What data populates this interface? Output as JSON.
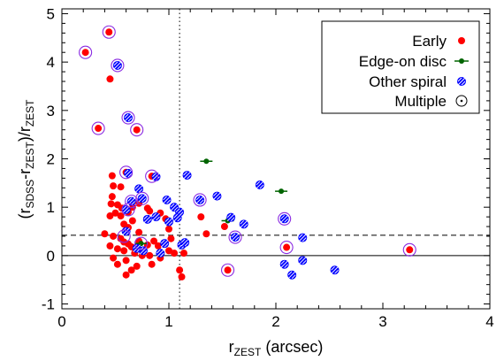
{
  "chart_data": {
    "type": "scatter",
    "xlabel": {
      "main": "r",
      "sub": "ZEST",
      "rest": " (arcsec)"
    },
    "ylabel": {
      "parts": [
        {
          "t": "(r",
          "sub": false
        },
        {
          "t": "SDSS",
          "sub": true
        },
        {
          "t": "-r",
          "sub": false
        },
        {
          "t": "ZEST",
          "sub": true
        },
        {
          "t": ")/r",
          "sub": false
        },
        {
          "t": "ZEST",
          "sub": true
        }
      ]
    },
    "xlim": [
      0,
      4
    ],
    "ylim": [
      -1.1,
      5.1
    ],
    "xticks": [
      0,
      1,
      2,
      3,
      4
    ],
    "yticks": [
      -1,
      0,
      1,
      2,
      3,
      4,
      5
    ],
    "reference_lines": {
      "horizontal_solid_y": 0,
      "horizontal_dashed_y": 0.42,
      "vertical_dotted_x": 1.1
    },
    "legend_position": "top-right",
    "colors": {
      "early": "#ff0000",
      "edge_on": "#006400",
      "other_spiral": "#0000ff",
      "multiple_ring": "#8a2be2"
    },
    "series": [
      {
        "name": "Early",
        "marker": "filled-circle",
        "points": [
          [
            0.22,
            4.2
          ],
          [
            0.44,
            4.62
          ],
          [
            0.45,
            3.65
          ],
          [
            0.34,
            2.63
          ],
          [
            0.7,
            2.6
          ],
          [
            0.6,
            1.72
          ],
          [
            0.47,
            1.65
          ],
          [
            0.48,
            1.44
          ],
          [
            0.55,
            1.42
          ],
          [
            0.47,
            1.22
          ],
          [
            0.46,
            1.07
          ],
          [
            0.52,
            1.05
          ],
          [
            0.56,
            0.98
          ],
          [
            0.62,
            0.9
          ],
          [
            0.66,
            1.0
          ],
          [
            0.72,
            1.08
          ],
          [
            0.5,
            0.88
          ],
          [
            0.55,
            0.82
          ],
          [
            0.45,
            0.82
          ],
          [
            0.8,
            0.98
          ],
          [
            0.82,
            0.92
          ],
          [
            0.84,
            1.64
          ],
          [
            0.72,
            0.48
          ],
          [
            0.4,
            0.45
          ],
          [
            0.48,
            0.4
          ],
          [
            0.55,
            0.35
          ],
          [
            0.58,
            0.28
          ],
          [
            0.62,
            0.24
          ],
          [
            0.65,
            0.18
          ],
          [
            0.45,
            0.2
          ],
          [
            0.52,
            0.14
          ],
          [
            0.58,
            0.1
          ],
          [
            0.68,
            0.05
          ],
          [
            0.75,
            0.0
          ],
          [
            0.82,
            0.0
          ],
          [
            0.48,
            -0.05
          ],
          [
            0.52,
            -0.18
          ],
          [
            0.6,
            -0.1
          ],
          [
            0.7,
            -0.22
          ],
          [
            0.65,
            -0.3
          ],
          [
            0.6,
            -0.4
          ],
          [
            0.84,
            -0.18
          ],
          [
            0.92,
            -0.05
          ],
          [
            1.0,
            0.1
          ],
          [
            1.02,
            0.35
          ],
          [
            1.05,
            0.05
          ],
          [
            1.1,
            -0.3
          ],
          [
            1.12,
            -0.44
          ],
          [
            1.14,
            0.05
          ],
          [
            1.0,
            0.55
          ],
          [
            0.97,
            0.76
          ],
          [
            0.92,
            0.88
          ],
          [
            0.86,
            0.3
          ],
          [
            0.9,
            0.2
          ],
          [
            0.8,
            0.22
          ],
          [
            0.72,
            0.3
          ],
          [
            0.62,
            0.58
          ],
          [
            0.58,
            0.65
          ],
          [
            0.66,
            0.72
          ],
          [
            1.3,
            0.8
          ],
          [
            1.35,
            0.45
          ],
          [
            1.52,
            0.6
          ],
          [
            1.55,
            -0.3
          ],
          [
            2.1,
            0.17
          ],
          [
            3.25,
            0.12
          ]
        ]
      },
      {
        "name": "Edge-on disc",
        "marker": "circle-with-bar",
        "points": [
          [
            1.35,
            1.95
          ],
          [
            2.05,
            1.33
          ],
          [
            1.55,
            0.72
          ],
          [
            0.74,
            0.25
          ]
        ]
      },
      {
        "name": "Other spiral",
        "marker": "hatched-circle",
        "points": [
          [
            0.52,
            3.93
          ],
          [
            0.62,
            2.85
          ],
          [
            0.62,
            1.7
          ],
          [
            0.72,
            1.38
          ],
          [
            0.88,
            1.63
          ],
          [
            0.98,
            1.15
          ],
          [
            1.05,
            1.0
          ],
          [
            1.1,
            0.9
          ],
          [
            1.08,
            0.78
          ],
          [
            1.0,
            0.7
          ],
          [
            0.88,
            0.8
          ],
          [
            0.8,
            0.75
          ],
          [
            0.75,
            1.18
          ],
          [
            0.65,
            1.12
          ],
          [
            0.6,
            0.95
          ],
          [
            1.17,
            1.66
          ],
          [
            1.29,
            1.15
          ],
          [
            1.45,
            1.23
          ],
          [
            1.58,
            0.79
          ],
          [
            1.62,
            0.38
          ],
          [
            1.7,
            0.65
          ],
          [
            1.85,
            1.46
          ],
          [
            2.08,
            0.76
          ],
          [
            2.25,
            0.37
          ],
          [
            2.08,
            -0.18
          ],
          [
            2.15,
            -0.4
          ],
          [
            2.25,
            -0.1
          ],
          [
            2.55,
            -0.3
          ],
          [
            1.12,
            0.22
          ],
          [
            1.15,
            0.27
          ],
          [
            0.96,
            0.25
          ],
          [
            0.92,
            0.05
          ],
          [
            0.76,
            0.1
          ],
          [
            0.7,
            0.15
          ],
          [
            0.6,
            0.5
          ]
        ]
      },
      {
        "name": "Multiple",
        "marker": "ring",
        "points": [
          [
            0.22,
            4.2
          ],
          [
            0.44,
            4.62
          ],
          [
            0.34,
            2.63
          ],
          [
            0.7,
            2.6
          ],
          [
            0.52,
            3.93
          ],
          [
            0.62,
            2.85
          ],
          [
            0.6,
            1.72
          ],
          [
            0.84,
            1.64
          ],
          [
            0.75,
            1.18
          ],
          [
            0.65,
            1.12
          ],
          [
            1.29,
            1.15
          ],
          [
            2.08,
            0.76
          ],
          [
            1.62,
            0.38
          ],
          [
            2.1,
            0.17
          ],
          [
            3.25,
            0.12
          ],
          [
            1.55,
            -0.3
          ],
          [
            0.74,
            0.25
          ],
          [
            0.62,
            0.95
          ],
          [
            0.58,
            0.4
          ]
        ]
      }
    ]
  }
}
